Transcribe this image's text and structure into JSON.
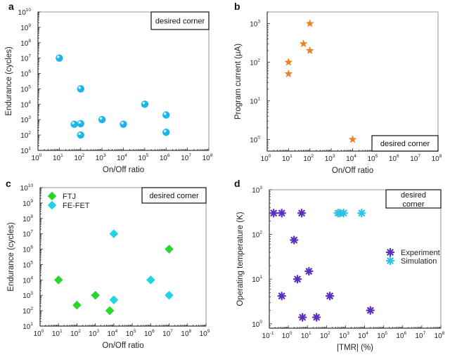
{
  "chart_data": [
    {
      "panel": "a",
      "type": "scatter",
      "title": "",
      "xlabel": "On/Off ratio",
      "ylabel": "Endurance (cycles)",
      "xscale": "log",
      "yscale": "log",
      "xlim": [
        1,
        100000000.0
      ],
      "ylim": [
        10,
        10000000000.0
      ],
      "xticks": [
        0,
        1,
        2,
        3,
        4,
        5,
        6,
        7,
        8
      ],
      "yticks": [
        1,
        2,
        3,
        4,
        5,
        6,
        7,
        8,
        9,
        10
      ],
      "grid": false,
      "annotation": {
        "text": "desired corner",
        "placement": "top-right"
      },
      "series": [
        {
          "name": "",
          "marker": "sphere",
          "color": "#1cb5e8",
          "points": [
            [
              10,
              10000000.0
            ],
            [
              100,
              100000.0
            ],
            [
              50,
              500
            ],
            [
              100,
              550
            ],
            [
              100,
              100
            ],
            [
              1000,
              1000
            ],
            [
              10000,
              500
            ],
            [
              100000,
              10000
            ],
            [
              1000000.0,
              2000
            ],
            [
              1000000.0,
              150
            ]
          ]
        }
      ]
    },
    {
      "panel": "b",
      "type": "scatter",
      "title": "",
      "xlabel": "On/Off ratio",
      "ylabel": "Program current (μA)",
      "xscale": "log",
      "yscale": "log",
      "xlim": [
        1,
        100000000.0
      ],
      "ylim": [
        0.5,
        2000
      ],
      "xticks": [
        0,
        1,
        2,
        3,
        4,
        5,
        6,
        7,
        8
      ],
      "yticks": [
        0,
        1,
        2,
        3
      ],
      "grid": false,
      "annotation": {
        "text": "desired corner",
        "placement": "bottom-right"
      },
      "series": [
        {
          "name": "",
          "marker": "star",
          "color": "#e8832a",
          "points": [
            [
              100,
              1000
            ],
            [
              50,
              300
            ],
            [
              100,
              200
            ],
            [
              10,
              100
            ],
            [
              10,
              50
            ],
            [
              10000,
              1
            ]
          ]
        }
      ]
    },
    {
      "panel": "c",
      "type": "scatter",
      "title": "",
      "xlabel": "On/Off ratio",
      "ylabel": "Endurance (cycles)",
      "xscale": "log",
      "yscale": "log",
      "xlim": [
        1,
        1000000000.0
      ],
      "ylim": [
        10,
        10000000000.0
      ],
      "xticks": [
        0,
        1,
        2,
        3,
        4,
        5,
        6,
        7,
        8,
        9
      ],
      "yticks": [
        1,
        2,
        3,
        4,
        5,
        6,
        7,
        8,
        9,
        10
      ],
      "grid": false,
      "legend": "top-left",
      "annotation": {
        "text": "desired corner",
        "placement": "top-right"
      },
      "series": [
        {
          "name": "FTJ",
          "marker": "diamond",
          "color": "#2bd62b",
          "points": [
            [
              10,
              10000
            ],
            [
              100,
              230
            ],
            [
              1000,
              1000
            ],
            [
              6000,
              100
            ],
            [
              10000000.0,
              1000000.0
            ]
          ]
        },
        {
          "name": "FE-FET",
          "marker": "diamond",
          "color": "#22d3e6",
          "points": [
            [
              10000,
              10000000.0
            ],
            [
              10000,
              500
            ],
            [
              1000000.0,
              10000
            ],
            [
              10000000.0,
              1000
            ]
          ]
        }
      ]
    },
    {
      "panel": "d",
      "type": "scatter",
      "title": "",
      "xlabel": "|TMR| (%)",
      "ylabel": "Operating temperature (K)",
      "xscale": "log",
      "yscale": "log",
      "xlim": [
        0.1,
        100000000.0
      ],
      "ylim": [
        0.8,
        1000
      ],
      "xticks": [
        -1,
        0,
        1,
        2,
        3,
        4,
        5,
        6,
        7,
        8
      ],
      "yticks": [
        0,
        1,
        2,
        3
      ],
      "grid": false,
      "legend": "center-right",
      "annotation": {
        "text": "desired corner",
        "placement": "top-right"
      },
      "series": [
        {
          "name": "Experiment",
          "marker": "asterisk",
          "color": "#5a2fc0",
          "points": [
            [
              0.17,
              300
            ],
            [
              0.45,
              300
            ],
            [
              5,
              300
            ],
            [
              2,
              75
            ],
            [
              3,
              10
            ],
            [
              12,
              15
            ],
            [
              0.45,
              4.2
            ],
            [
              5.5,
              1.4
            ],
            [
              30,
              1.4
            ],
            [
              150,
              4.2
            ],
            [
              20000,
              2
            ]
          ]
        },
        {
          "name": "Simulation",
          "marker": "asterisk",
          "color": "#2cc3e6",
          "points": [
            [
              400,
              300
            ],
            [
              500,
              300
            ],
            [
              800,
              300
            ],
            [
              7000,
              300
            ]
          ]
        }
      ]
    }
  ]
}
